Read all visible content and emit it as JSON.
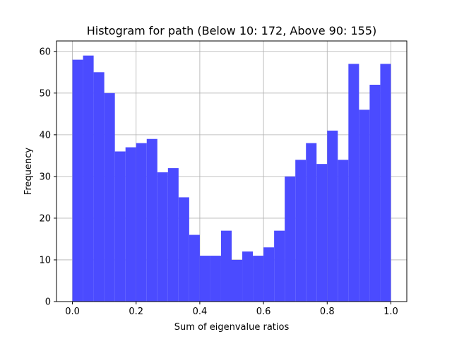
{
  "chart_data": {
    "type": "bar",
    "title": "Histogram for path (Below 10: 172, Above 90: 155)",
    "xlabel": "Sum of eigenvalue ratios",
    "ylabel": "Frequency",
    "xlim": [
      -0.05,
      1.05
    ],
    "ylim": [
      0,
      62.5
    ],
    "x_ticks": [
      0.0,
      0.2,
      0.4,
      0.6,
      0.8,
      1.0
    ],
    "x_tick_labels": [
      "0.0",
      "0.2",
      "0.4",
      "0.6",
      "0.8",
      "1.0"
    ],
    "y_ticks": [
      0,
      10,
      20,
      30,
      40,
      50,
      60
    ],
    "y_tick_labels": [
      "0",
      "10",
      "20",
      "30",
      "40",
      "50",
      "60"
    ],
    "grid": true,
    "bar_color": "#4b4bff",
    "bin_start": 0.0,
    "bin_end": 1.0,
    "values": [
      58,
      59,
      55,
      50,
      36,
      37,
      38,
      39,
      31,
      32,
      25,
      16,
      11,
      11,
      17,
      10,
      12,
      11,
      13,
      17,
      30,
      34,
      38,
      33,
      41,
      34,
      57,
      46,
      52,
      57
    ]
  }
}
